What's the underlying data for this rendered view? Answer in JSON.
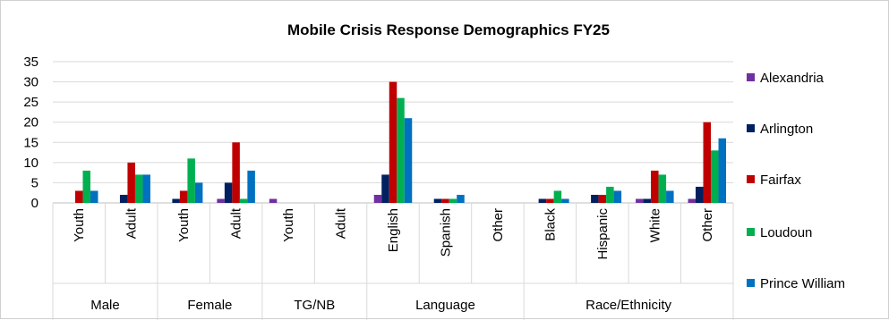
{
  "chart_data": {
    "type": "bar",
    "title": "Mobile Crisis Response Demographics FY25",
    "ylim": [
      0,
      35
    ],
    "yticks": [
      0,
      5,
      10,
      15,
      20,
      25,
      30,
      35
    ],
    "grid": true,
    "legend_position": "right",
    "categories": [
      {
        "label": "Youth",
        "group": "Male"
      },
      {
        "label": "Adult",
        "group": "Male"
      },
      {
        "label": "Youth",
        "group": "Female"
      },
      {
        "label": "Adult",
        "group": "Female"
      },
      {
        "label": "Youth",
        "group": "TG/NB"
      },
      {
        "label": "Adult",
        "group": "TG/NB"
      },
      {
        "label": "English",
        "group": "Language"
      },
      {
        "label": "Spanish",
        "group": "Language"
      },
      {
        "label": "Other",
        "group": "Language"
      },
      {
        "label": "Black",
        "group": "Race/Ethnicity"
      },
      {
        "label": "Hispanic",
        "group": "Race/Ethnicity"
      },
      {
        "label": "White",
        "group": "Race/Ethnicity"
      },
      {
        "label": "Other",
        "group": "Race/Ethnicity"
      }
    ],
    "groups": [
      "Male",
      "Female",
      "TG/NB",
      "Language",
      "Race/Ethnicity"
    ],
    "series": [
      {
        "name": "Alexandria",
        "color": "#7030a0",
        "values": [
          0,
          0,
          0,
          1,
          1,
          0,
          2,
          0,
          0,
          0,
          0,
          1,
          1
        ]
      },
      {
        "name": "Arlington",
        "color": "#002060",
        "values": [
          0,
          2,
          1,
          5,
          0,
          0,
          7,
          1,
          0,
          1,
          2,
          1,
          4
        ]
      },
      {
        "name": "Fairfax",
        "color": "#c00000",
        "values": [
          3,
          10,
          3,
          15,
          0,
          0,
          30,
          1,
          0,
          1,
          2,
          8,
          20
        ]
      },
      {
        "name": "Loudoun",
        "color": "#00b050",
        "values": [
          8,
          7,
          11,
          1,
          0,
          0,
          26,
          1,
          0,
          3,
          4,
          7,
          13
        ]
      },
      {
        "name": "Prince William",
        "color": "#0070c0",
        "values": [
          3,
          7,
          5,
          8,
          0,
          0,
          21,
          2,
          0,
          1,
          3,
          3,
          16
        ]
      }
    ]
  }
}
